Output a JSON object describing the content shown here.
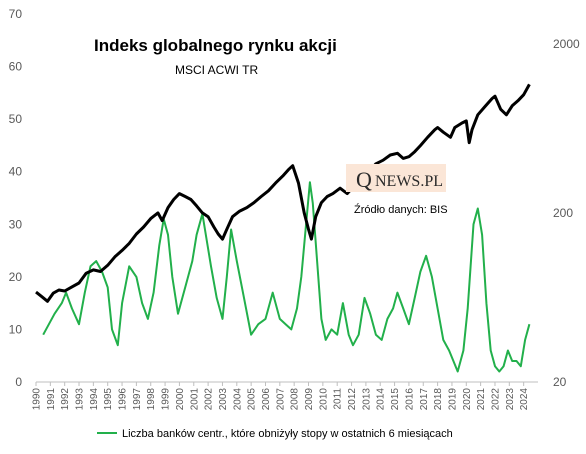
{
  "chart_data": {
    "type": "line",
    "title": "Indeks globalnego rynku akcji",
    "subtitle": "MSCI ACWI TR",
    "logo_text": {
      "q": "Q",
      "rest": "NEWS.PL"
    },
    "source": "Źródło danych: BIS",
    "legend": [
      {
        "label": "Liczba banków centr., które obniżyły stopy w ostatnich 6 miesiącach",
        "color": "#22b04b"
      }
    ],
    "legend_position": "bottom",
    "left_axis": {
      "range": [
        0,
        70
      ],
      "ticks": [
        "0",
        "10",
        "20",
        "30",
        "40",
        "50",
        "60",
        "70"
      ]
    },
    "right_axis": {
      "scale": "log",
      "range": [
        20,
        3000
      ],
      "ticks": [
        "20",
        "200",
        "2000"
      ]
    },
    "x_axis": {
      "range": [
        1990,
        2025
      ],
      "ticks": [
        "1990",
        "1991",
        "1992",
        "1993",
        "1994",
        "1995",
        "1996",
        "1997",
        "1998",
        "1999",
        "2000",
        "2001",
        "2002",
        "2003",
        "2004",
        "2005",
        "2006",
        "2007",
        "2008",
        "2009",
        "2010",
        "2011",
        "2012",
        "2013",
        "2014",
        "2015",
        "2016",
        "2017",
        "2018",
        "2019",
        "2020",
        "2021",
        "2022",
        "2023",
        "2024"
      ]
    },
    "grid": false,
    "series": [
      {
        "name": "Liczba banków centr., które obniżyły stopy w ostatnich 6 miesiącach",
        "axis": "left",
        "color": "#22b04b",
        "x": [
          1990.5,
          1990.9,
          1991.3,
          1991.8,
          1992.1,
          1992.5,
          1993.0,
          1993.4,
          1993.8,
          1994.2,
          1994.6,
          1995.0,
          1995.3,
          1995.7,
          1996.0,
          1996.5,
          1997.0,
          1997.4,
          1997.8,
          1998.2,
          1998.6,
          1998.9,
          1999.2,
          1999.5,
          1999.9,
          2000.4,
          2000.9,
          2001.2,
          2001.6,
          2001.9,
          2002.2,
          2002.6,
          2003.0,
          2003.3,
          2003.6,
          2004.0,
          2004.5,
          2005.0,
          2005.5,
          2006.0,
          2006.5,
          2007.0,
          2007.4,
          2007.8,
          2008.2,
          2008.5,
          2008.8,
          2009.1,
          2009.3,
          2009.6,
          2009.9,
          2010.2,
          2010.6,
          2011.0,
          2011.4,
          2011.8,
          2012.1,
          2012.5,
          2012.9,
          2013.3,
          2013.7,
          2014.1,
          2014.5,
          2014.9,
          2015.2,
          2015.6,
          2016.0,
          2016.4,
          2016.8,
          2017.2,
          2017.6,
          2018.0,
          2018.4,
          2018.8,
          2019.1,
          2019.4,
          2019.8,
          2020.1,
          2020.3,
          2020.5,
          2020.8,
          2021.1,
          2021.4,
          2021.7,
          2022.0,
          2022.3,
          2022.6,
          2022.9,
          2023.2,
          2023.5,
          2023.8,
          2024.1,
          2024.4
        ],
        "values": [
          9,
          11,
          13,
          15,
          17,
          14,
          11,
          17,
          22,
          23,
          21,
          18,
          10,
          7,
          15,
          22,
          20,
          15,
          12,
          17,
          26,
          31,
          28,
          20,
          13,
          18,
          23,
          28,
          32,
          27,
          22,
          16,
          12,
          20,
          29,
          23,
          16,
          9,
          11,
          12,
          17,
          12,
          11,
          10,
          14,
          20,
          29,
          38,
          34,
          23,
          12,
          8,
          10,
          9,
          15,
          9,
          7,
          9,
          16,
          13,
          9,
          8,
          12,
          14,
          17,
          14,
          11,
          16,
          21,
          24,
          20,
          14,
          8,
          6,
          4,
          2,
          6,
          14,
          22,
          30,
          33,
          28,
          15,
          6,
          3,
          2,
          3,
          6,
          4,
          4,
          3,
          8,
          11
        ]
      },
      {
        "name": "Indeks globalnego rynku akcji",
        "axis": "right",
        "color": "#000000",
        "x": [
          1990.0,
          1990.4,
          1990.8,
          1991.2,
          1991.6,
          1992.0,
          1992.5,
          1993.0,
          1993.5,
          1994.0,
          1994.5,
          1995.0,
          1995.5,
          1996.0,
          1996.5,
          1997.0,
          1997.5,
          1998.0,
          1998.5,
          1998.8,
          1999.2,
          1999.6,
          2000.0,
          2000.4,
          2000.8,
          2001.2,
          2001.6,
          2002.0,
          2002.4,
          2002.7,
          2003.0,
          2003.3,
          2003.7,
          2004.2,
          2004.7,
          2005.2,
          2005.7,
          2006.2,
          2006.7,
          2007.2,
          2007.6,
          2007.9,
          2008.3,
          2008.7,
          2009.0,
          2009.2,
          2009.5,
          2009.9,
          2010.3,
          2010.7,
          2011.2,
          2011.7,
          2012.2,
          2012.7,
          2013.2,
          2013.7,
          2014.2,
          2014.7,
          2015.2,
          2015.6,
          2016.0,
          2016.4,
          2016.8,
          2017.3,
          2017.8,
          2018.0,
          2018.4,
          2018.9,
          2019.2,
          2019.7,
          2020.0,
          2020.2,
          2020.4,
          2020.8,
          2021.3,
          2021.8,
          2022.0,
          2022.4,
          2022.8,
          2023.2,
          2023.6,
          2024.0,
          2024.4
        ],
        "values": [
          68,
          64,
          60,
          67,
          70,
          69,
          73,
          77,
          88,
          92,
          90,
          98,
          110,
          120,
          132,
          150,
          165,
          185,
          200,
          180,
          215,
          240,
          260,
          250,
          240,
          220,
          200,
          190,
          165,
          150,
          140,
          160,
          190,
          205,
          215,
          230,
          250,
          270,
          300,
          330,
          360,
          380,
          300,
          200,
          160,
          140,
          190,
          230,
          250,
          260,
          280,
          260,
          290,
          300,
          350,
          390,
          410,
          440,
          450,
          420,
          430,
          460,
          500,
          560,
          620,
          640,
          600,
          560,
          640,
          680,
          700,
          520,
          620,
          760,
          850,
          950,
          980,
          820,
          760,
          860,
          920,
          1000,
          1150
        ]
      }
    ]
  }
}
